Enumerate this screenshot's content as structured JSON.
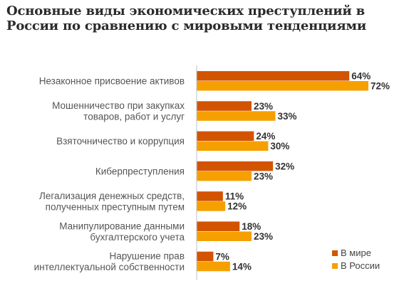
{
  "chart_data": {
    "type": "bar",
    "orientation": "horizontal",
    "title": "Основные виды экономических преступлений в России по сравнению с мировыми тенденциями",
    "categories": [
      [
        "Незаконное присвоение активов"
      ],
      [
        "Мошенничество при закупках",
        "товаров, работ и услуг"
      ],
      [
        "Взяточничество и коррупция"
      ],
      [
        "Киберпреступления"
      ],
      [
        "Легализация денежных средств,",
        "полученных преступным путем"
      ],
      [
        "Манипулирование данными",
        "бухгалтерского учета"
      ],
      [
        "Нарушение прав",
        "интеллектуальной собственности"
      ]
    ],
    "series": [
      {
        "name": "В мире",
        "values": [
          64,
          23,
          24,
          32,
          11,
          18,
          7
        ],
        "color": "#d35400"
      },
      {
        "name": "В России",
        "values": [
          72,
          33,
          30,
          23,
          12,
          23,
          14
        ],
        "color": "#f5a000"
      }
    ],
    "value_suffix": "%",
    "legend": "bottom-right",
    "grid": false
  }
}
